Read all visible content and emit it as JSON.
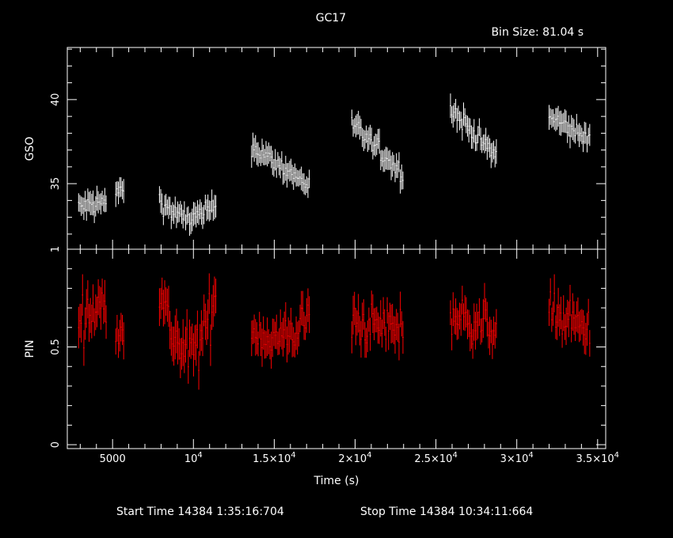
{
  "chart_data": {
    "type": "scatter",
    "title": "GC17",
    "bin_size_label": "Bin Size:  81.04 s",
    "footer": {
      "start": "Start Time 14384  1:35:16:704",
      "stop": "Stop Time 14384 10:34:11:664"
    },
    "xlabel": "Time (s)",
    "xlim": [
      2200,
      35500
    ],
    "x_ticks": [
      {
        "value": 5000,
        "label": "5000"
      },
      {
        "value": 10000,
        "label": "10",
        "sup": "4"
      },
      {
        "value": 15000,
        "label": "1.5×10",
        "sup": "4"
      },
      {
        "value": 20000,
        "label": "2×10",
        "sup": "4"
      },
      {
        "value": 25000,
        "label": "2.5×10",
        "sup": "4"
      },
      {
        "value": 30000,
        "label": "3×10",
        "sup": "4"
      },
      {
        "value": 35000,
        "label": "3.5×10",
        "sup": "4"
      }
    ],
    "panels": [
      {
        "name": "GSO",
        "ylabel": "GSO",
        "ylim": [
          31.1,
          43.1
        ],
        "y_ticks": [
          {
            "value": 35,
            "label": "35"
          },
          {
            "value": 40,
            "label": "40"
          }
        ],
        "color": "#ffffff",
        "segments": [
          {
            "x0": 2900,
            "x1": 4600,
            "level_start": 33.6,
            "level_end": 33.9,
            "noise": 0.55,
            "err": 0.75
          },
          {
            "x0": 5200,
            "x1": 5700,
            "level_start": 34.4,
            "level_end": 34.8,
            "noise": 0.4,
            "err": 0.75
          },
          {
            "x0": 7900,
            "x1": 11400,
            "level_start": 34.0,
            "level_end": 33.7,
            "dip": 1.0,
            "noise": 0.55,
            "err": 0.75
          },
          {
            "x0": 13600,
            "x1": 17200,
            "level_start": 37.2,
            "level_end": 34.9,
            "noise": 0.5,
            "err": 0.75
          },
          {
            "x0": 19800,
            "x1": 23000,
            "level_start": 38.5,
            "level_end": 35.6,
            "noise": 0.55,
            "err": 0.75
          },
          {
            "x0": 25900,
            "x1": 28700,
            "level_start": 39.5,
            "level_end": 36.6,
            "noise": 0.55,
            "err": 0.75
          },
          {
            "x0": 32000,
            "x1": 34500,
            "level_start": 39.0,
            "level_end": 37.6,
            "noise": 0.5,
            "err": 0.75
          }
        ]
      },
      {
        "name": "PIN",
        "ylabel": "PIN",
        "ylim": [
          -0.02,
          1.0
        ],
        "y_ticks": [
          {
            "value": 0,
            "label": "0"
          },
          {
            "value": 0.5,
            "label": "0.5"
          },
          {
            "value": 1,
            "label": "1"
          }
        ],
        "color": "#ff0000",
        "segments": [
          {
            "x0": 2900,
            "x1": 4600,
            "level_start": 0.64,
            "level_end": 0.72,
            "noise": 0.11,
            "err": 0.11
          },
          {
            "x0": 5200,
            "x1": 5700,
            "level_start": 0.6,
            "level_end": 0.6,
            "noise": 0.08,
            "err": 0.1
          },
          {
            "x0": 7900,
            "x1": 11400,
            "level_start": 0.78,
            "level_end": 0.75,
            "dip": 0.33,
            "noise": 0.12,
            "err": 0.12
          },
          {
            "x0": 13600,
            "x1": 17200,
            "level_start": 0.6,
            "level_end": 0.66,
            "dip": 0.1,
            "noise": 0.1,
            "err": 0.1
          },
          {
            "x0": 19800,
            "x1": 23000,
            "level_start": 0.62,
            "level_end": 0.6,
            "noise": 0.1,
            "err": 0.1
          },
          {
            "x0": 25900,
            "x1": 28700,
            "level_start": 0.66,
            "level_end": 0.6,
            "noise": 0.1,
            "err": 0.1
          },
          {
            "x0": 32000,
            "x1": 34500,
            "level_start": 0.68,
            "level_end": 0.58,
            "noise": 0.1,
            "err": 0.1
          }
        ]
      }
    ]
  }
}
